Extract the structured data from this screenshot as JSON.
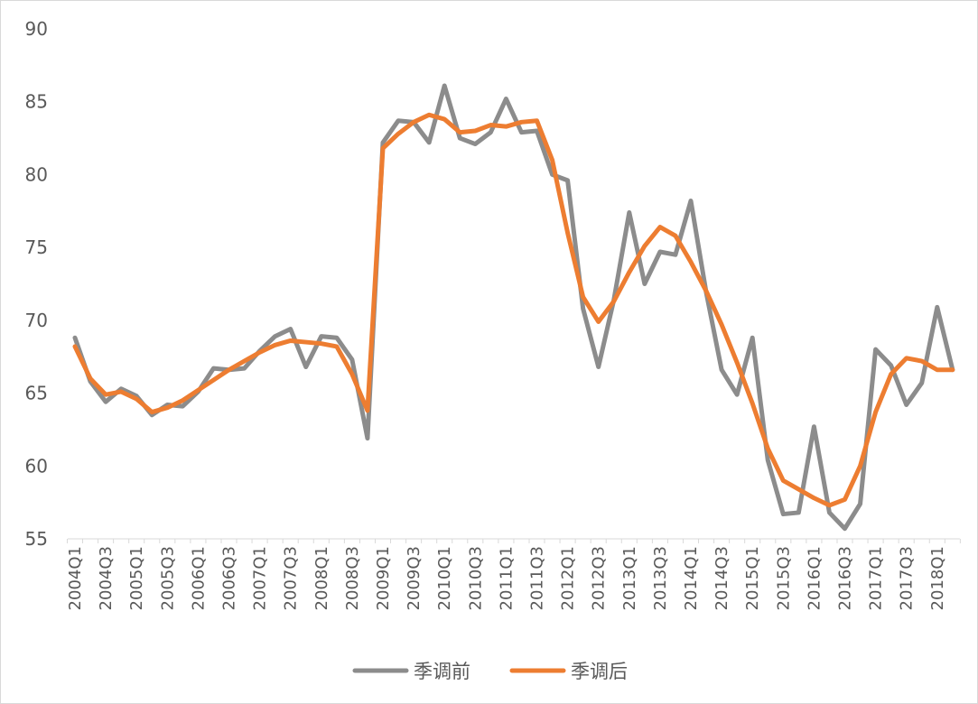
{
  "chart_data": {
    "type": "line",
    "title": "",
    "xlabel": "",
    "ylabel": "",
    "ylim": [
      55,
      90
    ],
    "yticks": [
      55,
      60,
      65,
      70,
      75,
      80,
      85,
      90
    ],
    "grid": false,
    "legend_position": "bottom",
    "x": [
      "2004Q1",
      "2004Q2",
      "2004Q3",
      "2004Q4",
      "2005Q1",
      "2005Q2",
      "2005Q3",
      "2005Q4",
      "2006Q1",
      "2006Q2",
      "2006Q3",
      "2006Q4",
      "2007Q1",
      "2007Q2",
      "2007Q3",
      "2007Q4",
      "2008Q1",
      "2008Q2",
      "2008Q3",
      "2008Q4",
      "2009Q1",
      "2009Q2",
      "2009Q3",
      "2009Q4",
      "2010Q1",
      "2010Q2",
      "2010Q3",
      "2010Q4",
      "2011Q1",
      "2011Q2",
      "2011Q3",
      "2011Q4",
      "2012Q1",
      "2012Q2",
      "2012Q3",
      "2012Q4",
      "2013Q1",
      "2013Q2",
      "2013Q3",
      "2013Q4",
      "2014Q1",
      "2014Q2",
      "2014Q3",
      "2014Q4",
      "2015Q1",
      "2015Q2",
      "2015Q3",
      "2015Q4",
      "2016Q1",
      "2016Q2",
      "2016Q3",
      "2016Q4",
      "2017Q1",
      "2017Q2",
      "2017Q3",
      "2017Q4",
      "2018Q1",
      "2018Q2"
    ],
    "xtick_labels": [
      "2004Q1",
      "2004Q3",
      "2005Q1",
      "2005Q3",
      "2006Q1",
      "2006Q3",
      "2007Q1",
      "2007Q3",
      "2008Q1",
      "2008Q3",
      "2009Q1",
      "2009Q3",
      "2010Q1",
      "2010Q3",
      "2011Q1",
      "2011Q3",
      "2012Q1",
      "2012Q3",
      "2013Q1",
      "2013Q3",
      "2014Q1",
      "2014Q3",
      "2015Q1",
      "2015Q3",
      "2016Q1",
      "2016Q3",
      "2017Q1",
      "2017Q3",
      "2018Q1"
    ],
    "series": [
      {
        "name": "季调前",
        "color": "#8c8c8c",
        "values": [
          68.8,
          65.8,
          64.4,
          65.3,
          64.8,
          63.5,
          64.2,
          64.1,
          65.1,
          66.7,
          66.6,
          66.7,
          67.9,
          68.9,
          69.4,
          66.8,
          68.9,
          68.8,
          67.3,
          61.9,
          82.2,
          83.7,
          83.6,
          82.2,
          86.1,
          82.5,
          82.1,
          82.9,
          85.2,
          82.9,
          83.0,
          80.0,
          79.6,
          70.8,
          66.8,
          71.4,
          77.4,
          72.5,
          74.7,
          74.5,
          78.2,
          71.9,
          66.6,
          64.9,
          68.8,
          60.4,
          56.7,
          56.8,
          62.7,
          56.8,
          55.7,
          57.4,
          68.0,
          66.9,
          64.2,
          65.7,
          70.9,
          66.6
        ]
      },
      {
        "name": "季调后",
        "color": "#ed7d31",
        "values": [
          68.2,
          66.0,
          64.9,
          65.1,
          64.6,
          63.7,
          64.0,
          64.5,
          65.2,
          65.9,
          66.6,
          67.2,
          67.8,
          68.3,
          68.6,
          68.5,
          68.4,
          68.2,
          66.3,
          63.8,
          81.8,
          82.8,
          83.6,
          84.1,
          83.8,
          82.9,
          83.0,
          83.4,
          83.3,
          83.6,
          83.7,
          81.0,
          76.0,
          71.6,
          69.9,
          71.3,
          73.3,
          75.1,
          76.4,
          75.8,
          74.0,
          72.0,
          69.7,
          67.1,
          64.3,
          61.2,
          59.0,
          58.4,
          57.8,
          57.3,
          57.7,
          60.0,
          63.7,
          66.3,
          67.4,
          67.2,
          66.6,
          66.6
        ]
      }
    ]
  }
}
